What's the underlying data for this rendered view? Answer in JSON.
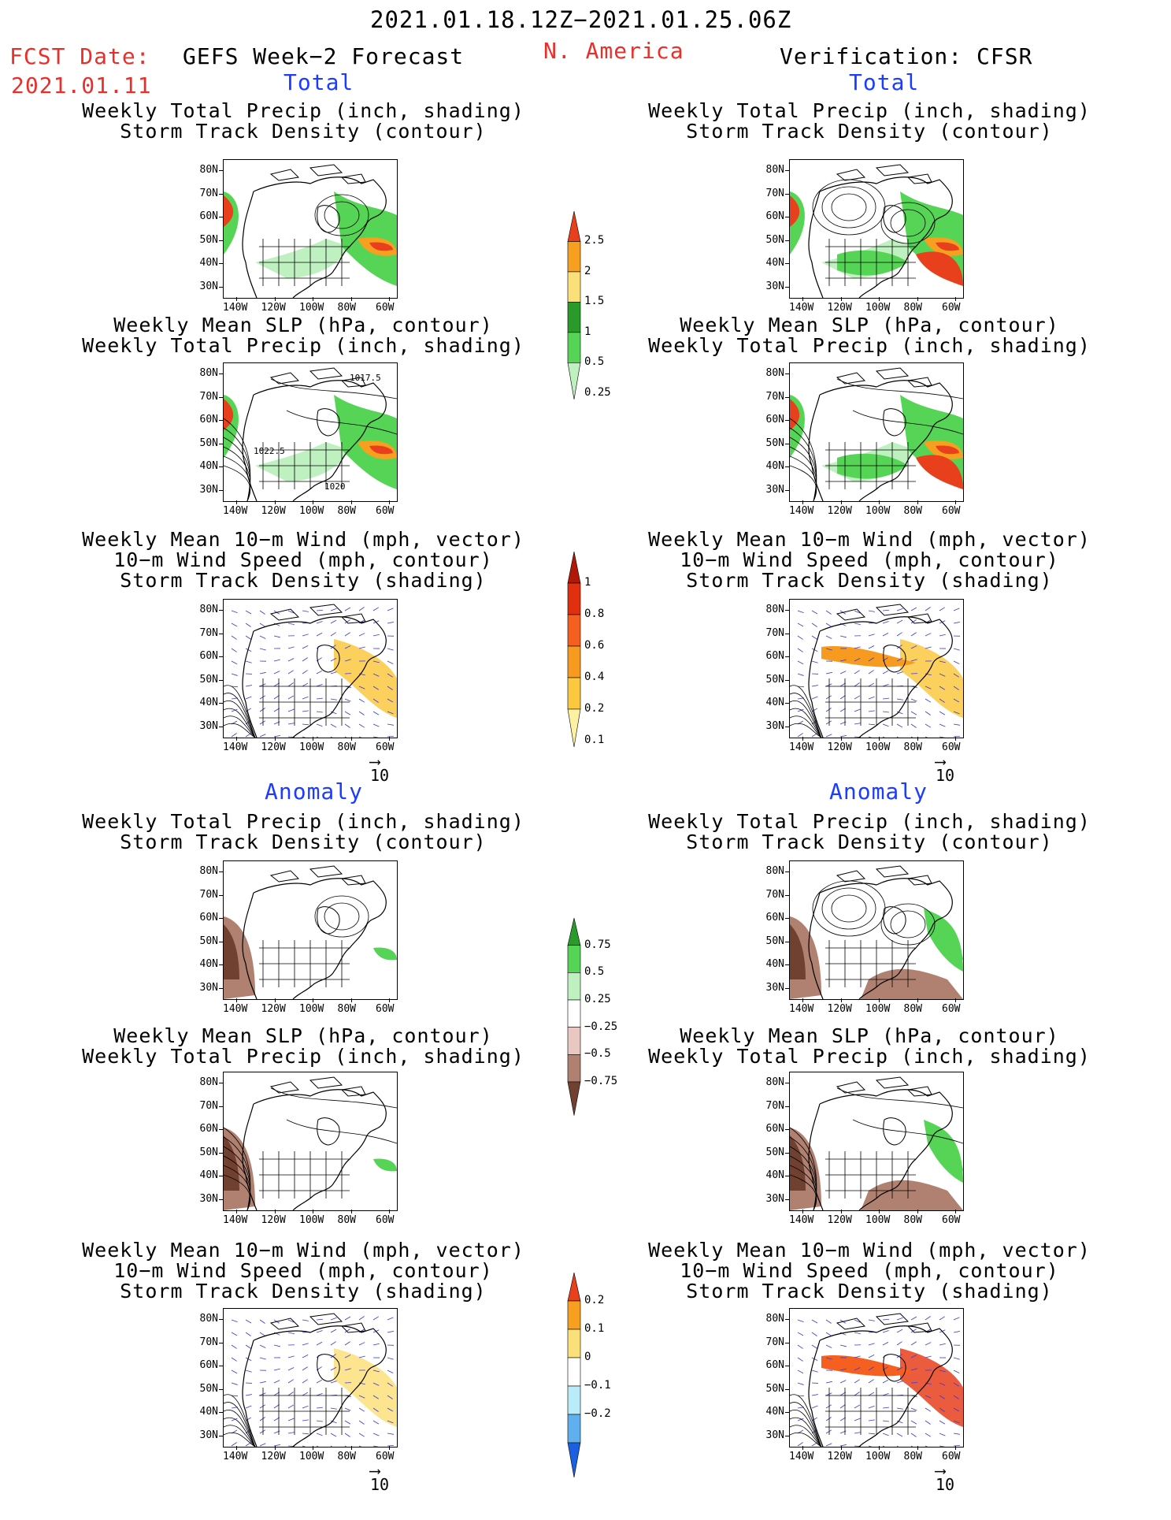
{
  "header": {
    "date_range": "2021.01.18.12Z−2021.01.25.06Z",
    "fcst_label": "FCST Date:",
    "fcst_date": "2021.01.11",
    "left_title": "GEFS Week−2 Forecast",
    "region": "N. America",
    "right_title": "Verification: CFSR"
  },
  "sections": {
    "total": "Total",
    "anomaly": "Anomaly"
  },
  "panel_titles": {
    "precip_track": [
      "Weekly Total Precip (inch, shading)",
      "Storm Track Density (contour)"
    ],
    "slp_precip": [
      "Weekly Mean SLP (hPa, contour)",
      "Weekly Total Precip (inch, shading)"
    ],
    "wind_track": [
      "Weekly Mean 10−m Wind (mph, vector)",
      "10−m Wind Speed (mph, contour)",
      "Storm Track Density (shading)"
    ]
  },
  "axes": {
    "lat_ticks": [
      "80N",
      "70N",
      "60N",
      "50N",
      "40N",
      "30N"
    ],
    "lon_ticks": [
      "140W",
      "120W",
      "100W",
      "80W",
      "60W"
    ]
  },
  "contour_labels": {
    "forecast_slp": [
      "1017.5",
      "1022.5",
      "1020"
    ]
  },
  "vector_ref": "10",
  "colorbars": {
    "precip_total": {
      "labels": [
        "2.5",
        "2",
        "1.5",
        "1",
        "0.5",
        "0.25"
      ],
      "colors": [
        "#e8401c",
        "#f7a020",
        "#fbe07a",
        "#2a9a2a",
        "#56d456",
        "#bff0bf"
      ]
    },
    "track_total": {
      "labels": [
        "1",
        "0.8",
        "0.6",
        "0.4",
        "0.2",
        "0.1"
      ],
      "colors": [
        "#b01808",
        "#e03010",
        "#f56020",
        "#f79a20",
        "#fcc840",
        "#fdf0a0"
      ]
    },
    "precip_anom": {
      "labels": [
        "0.75",
        "0.5",
        "0.25",
        "−0.25",
        "−0.5",
        "−0.75"
      ],
      "colors": [
        "#2a9a2a",
        "#56d456",
        "#bff0bf",
        "#ffffff",
        "#e8c8c0",
        "#b08070",
        "#704030"
      ]
    },
    "track_anom": {
      "labels": [
        "0.2",
        "0.1",
        "0",
        "−0.1",
        "−0.2"
      ],
      "colors": [
        "#e8401c",
        "#f7a020",
        "#fbe07a",
        "#ffffff",
        "#b8ecf8",
        "#60b0f0",
        "#1a60e0"
      ]
    }
  }
}
